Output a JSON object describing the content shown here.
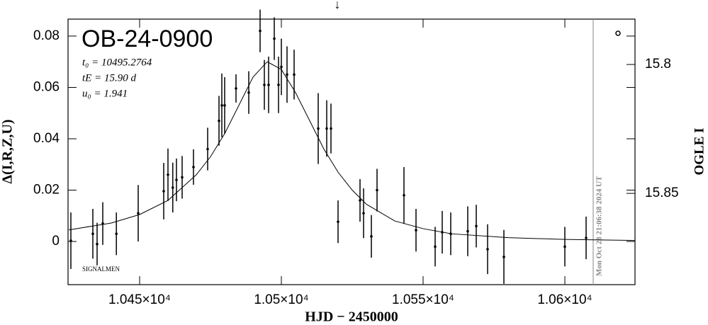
{
  "chart_data": {
    "type": "scatter",
    "title": "OB-24-0900",
    "params": [
      "t₀ = 10495.2764",
      "tE = 15.90 d",
      "u₀ = 1.941"
    ],
    "credit": "SIGNALMEN",
    "timestamp": {
      "x": 10610,
      "label": "Mon Oct 28 21:06:38 2024 UT"
    },
    "xlabel": "HJD − 2450000",
    "ylabel": "Δ(I,R,Z,U)",
    "y2label": "OGLE I",
    "xlim": [
      10424.75,
      10624.75
    ],
    "ylim": [
      -0.0168,
      0.0866
    ],
    "y2lim": [
      15.7824,
      15.8854
    ],
    "xticks": [
      {
        "value": 10450,
        "label": "1.045×10⁴"
      },
      {
        "value": 10500,
        "label": "1.05×10⁴"
      },
      {
        "value": 10550,
        "label": "1.055×10⁴"
      },
      {
        "value": 10600,
        "label": "1.06×10⁴"
      }
    ],
    "yticks": [
      0,
      0.02,
      0.04,
      0.06,
      0.08
    ],
    "y2ticks": [
      15.8,
      15.85
    ],
    "color": "#000000",
    "x": [
      10425.75,
      10433.5,
      10435,
      10437,
      10441.8,
      10449.5,
      10458.5,
      10460,
      10461.7,
      10463,
      10465,
      10469,
      10474,
      10478,
      10479,
      10480,
      10484,
      10488.5,
      10492.5,
      10494,
      10495.5,
      10497.5,
      10499,
      10500,
      10502,
      10504.5,
      10513,
      10516,
      10517.5,
      10520,
      10527.75,
      10529,
      10531.75,
      10533.75,
      10543.25,
      10547.5,
      10554.25,
      10556.75,
      10559.75,
      10565.75,
      10568.75,
      10572.75,
      10578.5,
      10600,
      10607.5
    ],
    "values": [
      0.0003,
      0.003,
      -0.001,
      0.007,
      0.003,
      0.011,
      0.0196,
      0.026,
      0.021,
      0.024,
      0.025,
      0.029,
      0.036,
      0.047,
      0.053,
      0.053,
      0.0596,
      0.058,
      0.082,
      0.061,
      0.061,
      0.079,
      0.061,
      0.068,
      0.065,
      0.065,
      0.044,
      0.044,
      0.044,
      0.0077,
      0.016,
      0.011,
      0.002,
      0.02,
      0.018,
      0.0044,
      -0.002,
      0.0036,
      0.003,
      0.004,
      0.006,
      -0.003,
      -0.006,
      -0.002,
      0.0014
    ],
    "errors": [
      0.011,
      0.0097,
      0.0083,
      0.0083,
      0.0083,
      0.011,
      0.011,
      0.0102,
      0.0097,
      0.0083,
      0.0083,
      0.0069,
      0.0083,
      0.0097,
      0.0124,
      0.011,
      0.0055,
      0.0083,
      0.0083,
      0.0097,
      0.011,
      0.0083,
      0.011,
      0.011,
      0.011,
      0.0097,
      0.0138,
      0.011,
      0.0097,
      0.0083,
      0.0083,
      0.0097,
      0.0083,
      0.0083,
      0.011,
      0.0083,
      0.0077,
      0.0083,
      0.0083,
      0.0097,
      0.0083,
      0.0097,
      0.0105,
      0.0077,
      0.0083
    ],
    "model": {
      "x": [
        10425,
        10440,
        10450,
        10460,
        10470,
        10475,
        10480,
        10485,
        10490,
        10495,
        10500,
        10505,
        10510,
        10515,
        10520,
        10525,
        10530,
        10540,
        10550,
        10560,
        10580,
        10600,
        10624.75
      ],
      "values": [
        0.0045,
        0.0072,
        0.0105,
        0.016,
        0.026,
        0.033,
        0.042,
        0.053,
        0.064,
        0.07,
        0.067,
        0.058,
        0.047,
        0.036,
        0.027,
        0.02,
        0.0145,
        0.008,
        0.005,
        0.003,
        0.0015,
        0.0008,
        0.0004
      ]
    }
  }
}
